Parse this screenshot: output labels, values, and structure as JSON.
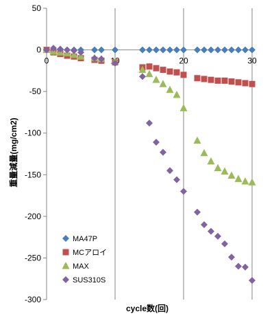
{
  "chart_data": {
    "type": "scatter",
    "title": "",
    "xlabel": "cycle数(回)",
    "ylabel": "重量減量(mg/cm2)",
    "xlim": [
      0,
      30
    ],
    "ylim": [
      -300,
      50
    ],
    "xticks": [
      0,
      10,
      20,
      30
    ],
    "yticks": [
      50,
      0,
      -50,
      -100,
      -150,
      -200,
      -250,
      -300
    ],
    "grid": "vertical",
    "legend_position": "bottom-left",
    "series": [
      {
        "name": "MA47P",
        "color": "#4a7ebb",
        "marker": "diamond",
        "x": [
          0,
          1,
          2,
          3,
          4,
          5,
          7,
          8,
          10,
          14,
          15,
          16,
          17,
          18,
          19,
          20,
          22,
          23,
          24,
          25,
          26,
          27,
          28,
          29,
          30
        ],
        "y": [
          0,
          0,
          0,
          0,
          0,
          0,
          0,
          0,
          0,
          0,
          0,
          0,
          0,
          0,
          0,
          0,
          0,
          0,
          0,
          0,
          0,
          0,
          0,
          0,
          0
        ]
      },
      {
        "name": "MCアロイ",
        "color": "#c0504d",
        "marker": "square",
        "x": [
          0,
          1,
          2,
          3,
          4,
          5,
          7,
          8,
          10,
          14,
          15,
          16,
          17,
          18,
          19,
          20,
          22,
          23,
          24,
          25,
          26,
          27,
          28,
          29,
          30
        ],
        "y": [
          0,
          -3,
          -5,
          -7,
          -8,
          -10,
          -12,
          -13,
          -15,
          -21,
          -20,
          -22,
          -24,
          -26,
          -27,
          -30,
          -34,
          -35,
          -36,
          -37,
          -37,
          -38,
          -39,
          -40,
          -41
        ]
      },
      {
        "name": "MAX",
        "color": "#9bbb59",
        "marker": "triangle",
        "x": [
          0,
          1,
          2,
          3,
          4,
          5,
          7,
          8,
          10,
          14,
          15,
          16,
          17,
          18,
          19,
          20,
          22,
          23,
          24,
          25,
          26,
          27,
          28,
          29,
          30
        ],
        "y": [
          0,
          -2,
          -3,
          -4,
          -6,
          -8,
          -10,
          -11,
          -14,
          -24,
          -29,
          -36,
          -41,
          -48,
          -54,
          -70,
          -109,
          -124,
          -134,
          -142,
          -146,
          -151,
          -155,
          -158,
          -159
        ]
      },
      {
        "name": "SUS310S",
        "color": "#8064a2",
        "marker": "diamond",
        "x": [
          0,
          1,
          2,
          3,
          4,
          5,
          7,
          8,
          10,
          14,
          15,
          16,
          17,
          18,
          19,
          20,
          22,
          23,
          24,
          25,
          26,
          27,
          28,
          29,
          30
        ],
        "y": [
          0,
          2,
          1,
          0,
          -1,
          -3,
          -10,
          -11,
          -16,
          -32,
          -88,
          -111,
          -123,
          -145,
          -156,
          -170,
          -195,
          -210,
          -218,
          -224,
          -233,
          -249,
          -260,
          -261,
          -277
        ]
      }
    ]
  }
}
